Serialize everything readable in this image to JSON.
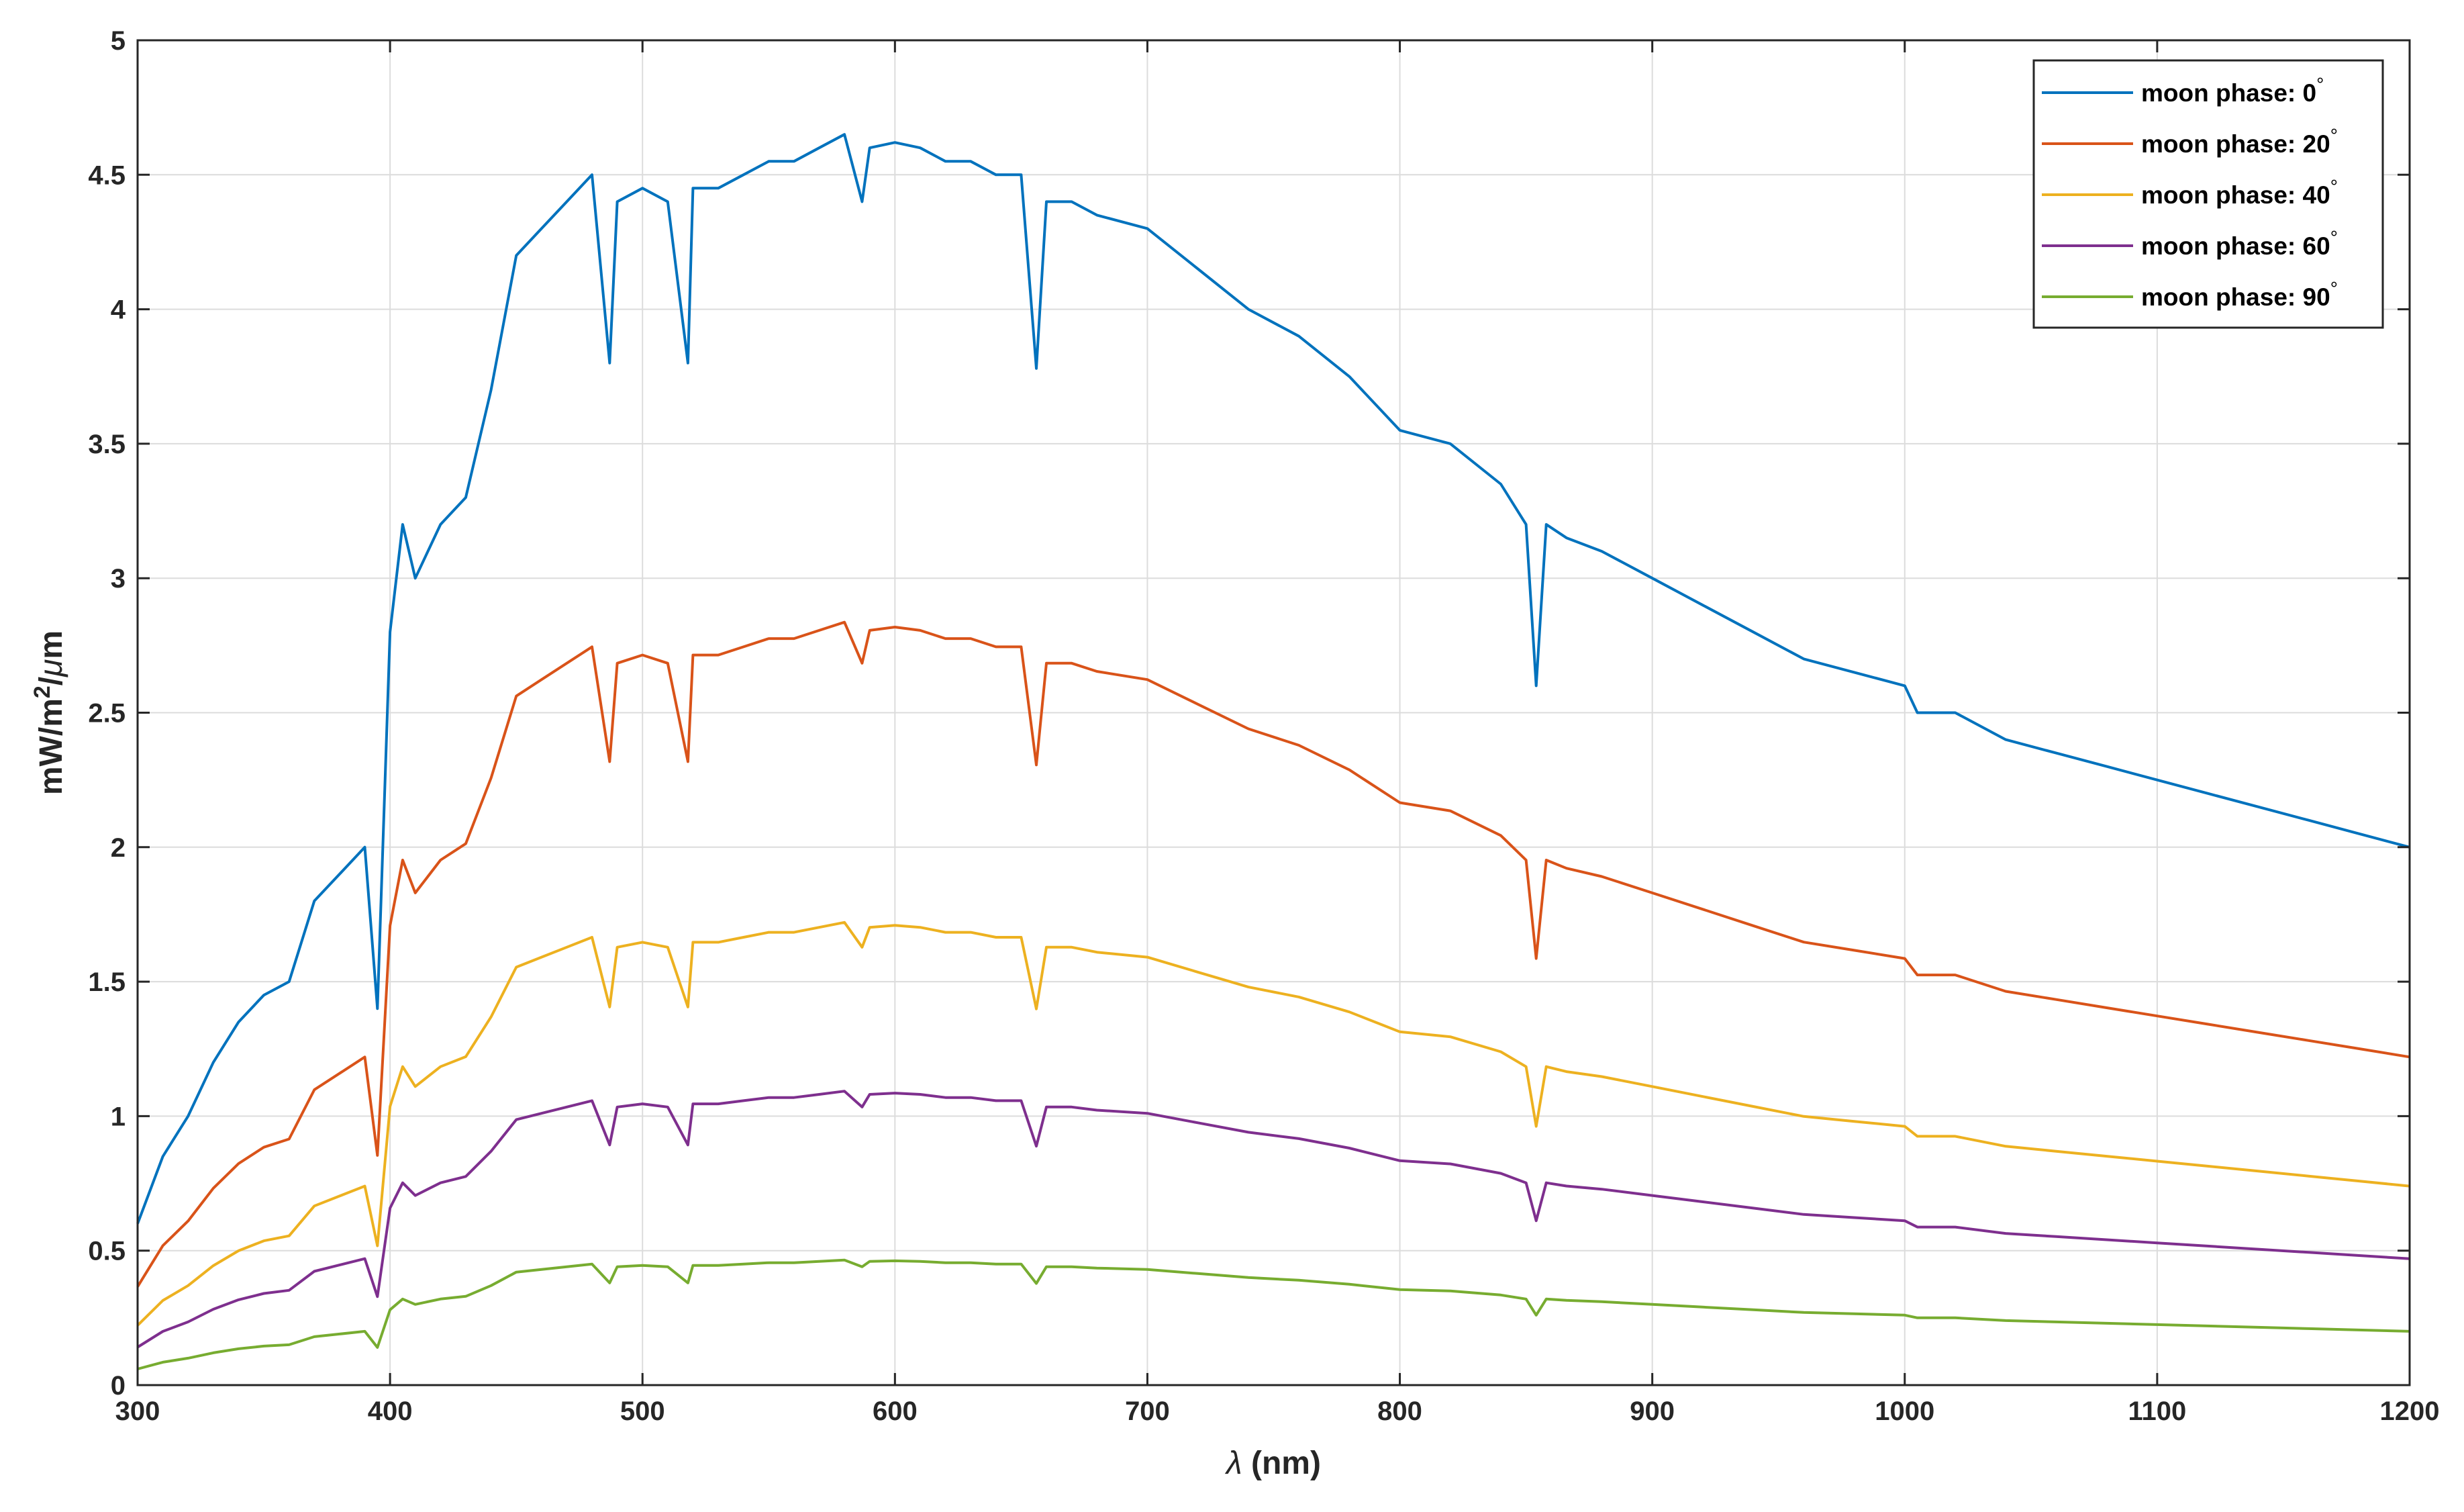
{
  "chart_data": {
    "type": "line",
    "title": "",
    "xlabel_symbol": "λ",
    "xlabel": " (nm)",
    "ylabel": "mW/m",
    "ylabel_sup": "2",
    "ylabel_rest": "/",
    "ylabel_mu": "μ",
    "ylabel_end": "m",
    "xlim": [
      300,
      1200
    ],
    "ylim": [
      0,
      5
    ],
    "xticks": [
      "300",
      "400",
      "500",
      "600",
      "700",
      "800",
      "900",
      "1000",
      "1100",
      "1200"
    ],
    "yticks": [
      "0",
      "0.5",
      "1",
      "1.5",
      "2",
      "2.5",
      "3",
      "3.5",
      "4",
      "4.5",
      "5"
    ],
    "grid": true,
    "legend_position": "top-right",
    "degree_symbol": "°",
    "reference_curve": {
      "x": [
        300,
        310,
        320,
        330,
        340,
        350,
        360,
        370,
        380,
        390,
        395,
        400,
        405,
        410,
        420,
        430,
        440,
        450,
        460,
        470,
        480,
        487,
        490,
        500,
        510,
        518,
        520,
        530,
        540,
        550,
        560,
        570,
        580,
        587,
        590,
        600,
        610,
        620,
        630,
        640,
        650,
        656,
        660,
        670,
        680,
        700,
        720,
        740,
        760,
        780,
        800,
        820,
        840,
        850,
        854,
        858,
        866,
        880,
        900,
        920,
        940,
        960,
        980,
        1000,
        1005,
        1020,
        1040,
        1060,
        1080,
        1100,
        1120,
        1140,
        1160,
        1180,
        1200
      ],
      "y": [
        0.6,
        0.85,
        1.0,
        1.2,
        1.35,
        1.45,
        1.5,
        1.8,
        1.9,
        2.0,
        1.4,
        2.8,
        3.2,
        3.0,
        3.2,
        3.3,
        3.7,
        4.2,
        4.3,
        4.4,
        4.5,
        3.8,
        4.4,
        4.45,
        4.4,
        3.8,
        4.45,
        4.45,
        4.5,
        4.55,
        4.55,
        4.6,
        4.65,
        4.4,
        4.6,
        4.62,
        4.6,
        4.55,
        4.55,
        4.5,
        4.5,
        3.78,
        4.4,
        4.4,
        4.35,
        4.3,
        4.15,
        4.0,
        3.9,
        3.75,
        3.55,
        3.5,
        3.35,
        3.2,
        2.6,
        3.2,
        3.15,
        3.1,
        3.0,
        2.9,
        2.8,
        2.7,
        2.65,
        2.6,
        2.5,
        2.5,
        2.4,
        2.35,
        2.3,
        2.25,
        2.2,
        2.15,
        2.1,
        2.05,
        2.0
      ]
    },
    "series": [
      {
        "name": "moon phase: 0",
        "color": "#0072BD",
        "scale": 1.0
      },
      {
        "name": "moon phase: 20",
        "color": "#D95319",
        "scale": 0.61
      },
      {
        "name": "moon phase: 40",
        "color": "#EDB120",
        "scale": 0.37
      },
      {
        "name": "moon phase: 60",
        "color": "#7E2F8E",
        "scale": 0.235
      },
      {
        "name": "moon phase: 90",
        "color": "#77AC30",
        "scale": 0.1
      }
    ]
  }
}
